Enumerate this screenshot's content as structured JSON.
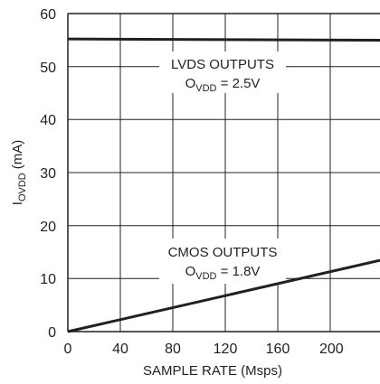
{
  "chart_data": {
    "type": "line",
    "title": "",
    "xlabel": "SAMPLE RATE (Msps)",
    "ylabel": {
      "main": "I",
      "sub": "OVDD",
      "unit": "(mA)"
    },
    "xlim": [
      0,
      200
    ],
    "ylim": [
      0,
      60
    ],
    "x_ticks": [
      "0",
      "40",
      "80",
      "120",
      "160",
      "200"
    ],
    "y_ticks": [
      "0",
      "10",
      "20",
      "30",
      "40",
      "50",
      "60"
    ],
    "grid": true,
    "series": [
      {
        "key": "lvds",
        "x": [
          0,
          200
        ],
        "y": [
          55.2,
          55.0
        ]
      },
      {
        "key": "cmos",
        "x": [
          0,
          200
        ],
        "y": [
          0,
          11.3
        ]
      }
    ],
    "annotations": {
      "lvds": {
        "line1": "LVDS OUTPUTS",
        "prefix": "O",
        "sub": "VDD",
        "suffix": " = 2.5V"
      },
      "cmos": {
        "line1": "CMOS OUTPUTS",
        "prefix": "O",
        "sub": "VDD",
        "suffix": " = 1.8V"
      }
    }
  }
}
